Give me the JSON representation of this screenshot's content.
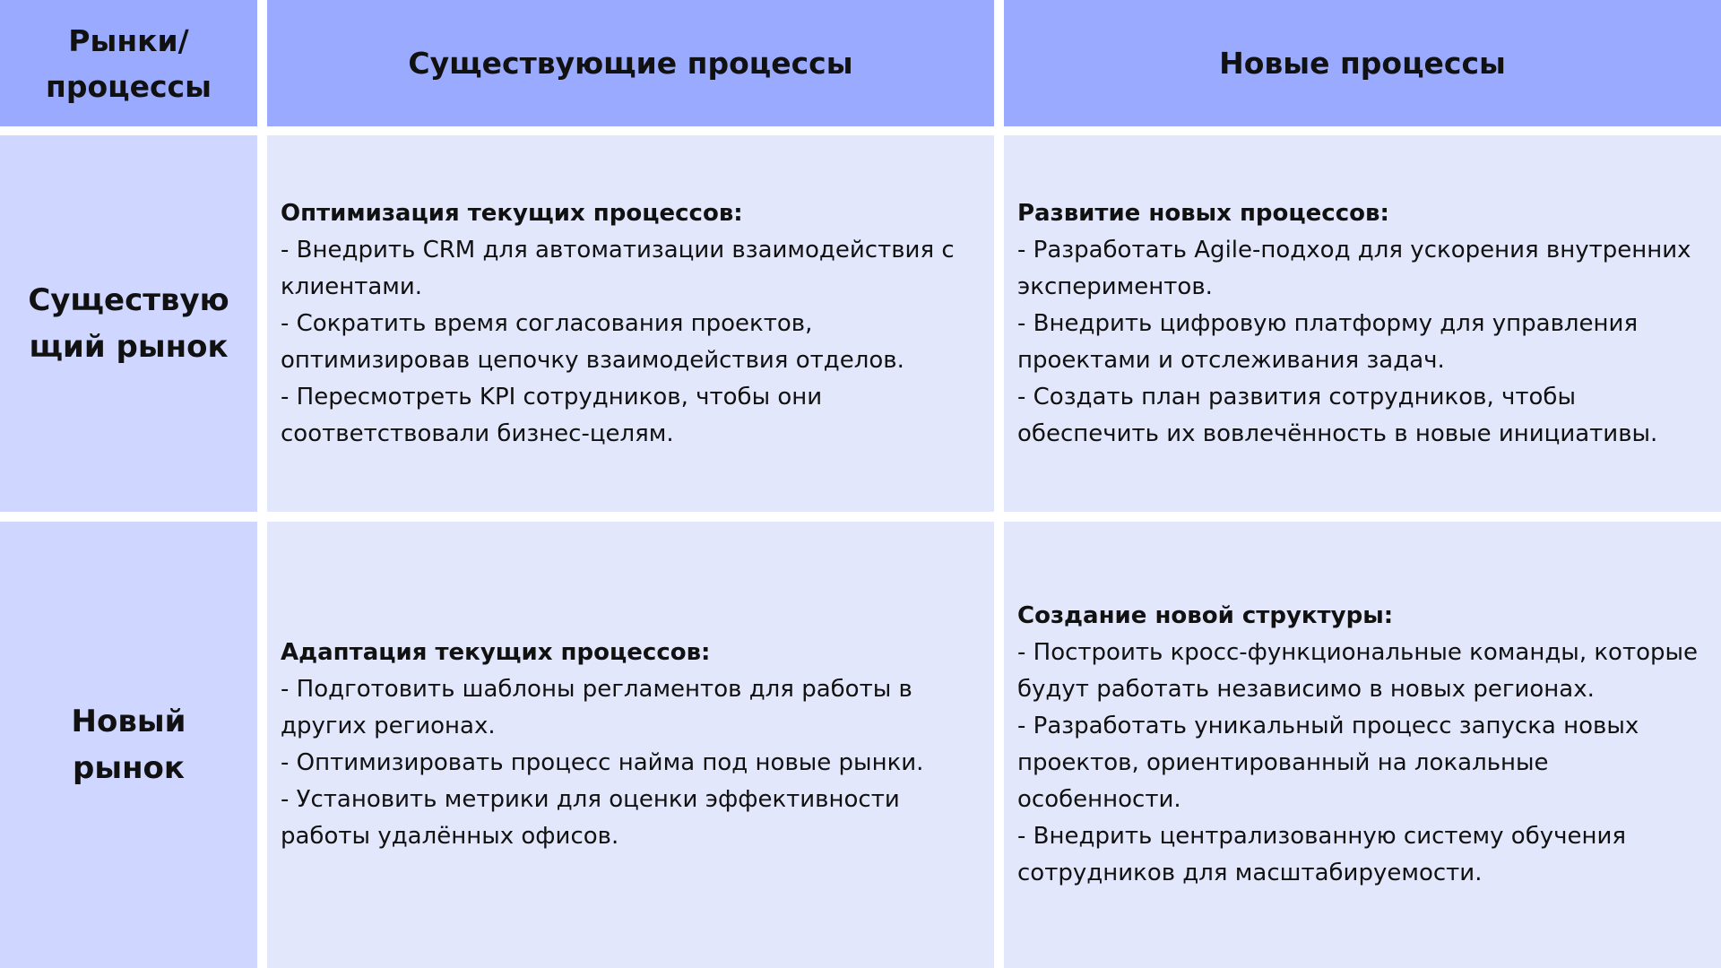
{
  "header": {
    "corner": "Рынки/ процессы",
    "col_existing": "Существующие процессы",
    "col_new": "Новые процессы"
  },
  "rows": [
    {
      "label": "Существую щий рынок",
      "existing": {
        "title": "Оптимизация текущих процессов:",
        "items": [
          "- Внедрить CRM для автоматизации взаимодействия с клиентами.",
          "- Сократить время согласования проектов, оптимизировав цепочку взаимодействия отделов.",
          "- Пересмотреть KPI сотрудников, чтобы они соответствовали бизнес-целям."
        ]
      },
      "new": {
        "title": "Развитие новых процессов:",
        "items": [
          "- Разработать Agile-подход для ускорения внутренних экспериментов.",
          "- Внедрить цифровую платформу для управления проектами и отслеживания задач.",
          "- Создать план развития сотрудников, чтобы обеспечить их вовлечённость в новые инициативы."
        ]
      }
    },
    {
      "label": "Новый рынок",
      "existing": {
        "title": "Адаптация текущих процессов:",
        "items": [
          "- Подготовить шаблоны регламентов для работы в других регионах.",
          "- Оптимизировать процесс найма под новые рынки.",
          "- Установить метрики для оценки эффективности работы удалённых офисов."
        ]
      },
      "new": {
        "title": "Создание новой структуры:",
        "items": [
          "- Построить кросс-функциональные команды, которые будут работать независимо в новых регионах.",
          "- Разработать уникальный процесс запуска новых проектов, ориентированный на локальные особенности.",
          "- Внедрить централизованную систему обучения сотрудников для масштабируемости."
        ]
      }
    }
  ],
  "colors": {
    "header": "#9aabff",
    "row_label": "#cfd6ff",
    "cell": "#e3e7fc"
  }
}
